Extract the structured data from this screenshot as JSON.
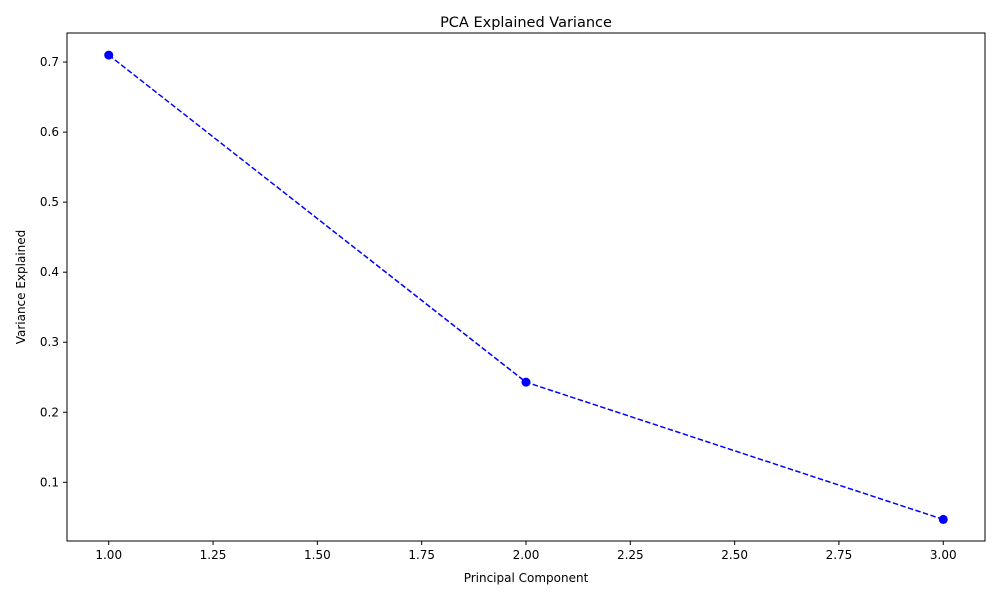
{
  "chart_data": {
    "type": "line",
    "title": "PCA Explained Variance",
    "xlabel": "Principal Component",
    "ylabel": "Variance Explained",
    "xlim": [
      0.9,
      3.1
    ],
    "ylim": [
      0.0162,
      0.7415
    ],
    "x_ticks": [
      1.0,
      1.25,
      1.5,
      1.75,
      2.0,
      2.25,
      2.5,
      2.75,
      3.0
    ],
    "x_tick_labels": [
      "1.00",
      "1.25",
      "1.50",
      "1.75",
      "2.00",
      "2.25",
      "2.50",
      "2.75",
      "3.00"
    ],
    "y_ticks": [
      0.1,
      0.2,
      0.3,
      0.4,
      0.5,
      0.6,
      0.7
    ],
    "y_tick_labels": [
      "0.1",
      "0.2",
      "0.3",
      "0.4",
      "0.5",
      "0.6",
      "0.7"
    ],
    "grid": false,
    "legend": "none",
    "series": [
      {
        "x": [
          1,
          2,
          3
        ],
        "values": [
          0.71,
          0.243,
          0.047
        ],
        "color": "#0000ff",
        "line_style": "dashed",
        "marker": "circle"
      }
    ]
  }
}
